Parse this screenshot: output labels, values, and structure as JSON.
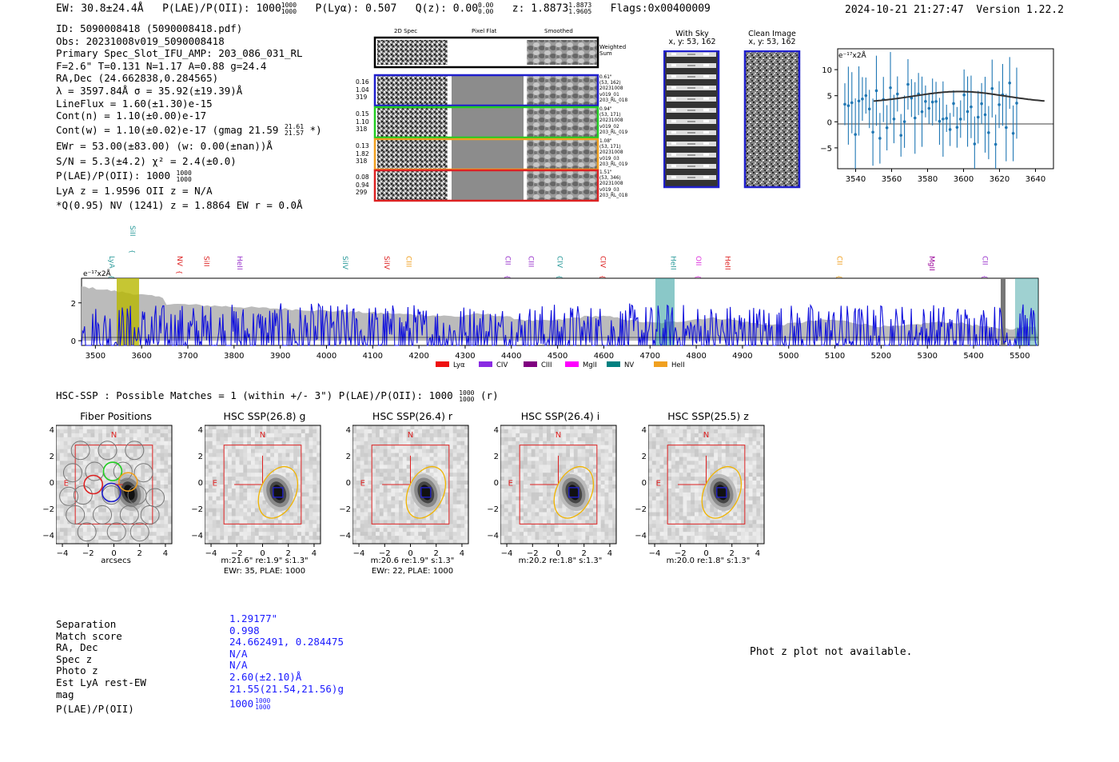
{
  "header": {
    "ew": "EW: 30.8±24.4Å",
    "plae_label": "P(LAE)/P(OII): 1000",
    "plae_hi": "1000",
    "plae_lo": "1000",
    "plya": "P(Lyα): 0.507",
    "qz_label": "Q(z): 0.00",
    "qz_hi": "0.00",
    "qz_lo": "0.00",
    "z_label": "z: 1.8873",
    "z_hi": "1.8873",
    "z_lo": "1.9605",
    "flags": "Flags:0x00400009",
    "timestamp": "2024-10-21 21:27:47",
    "version": "Version 1.22.2"
  },
  "info": {
    "id": "ID: 5090008418 (5090008418.pdf)",
    "obs": "Obs: 20231008v019_5090008418",
    "primary": "Primary Spec_Slot_IFU_AMP: 203_086_031_RL",
    "params": "F=2.6\"  T=0.131  N=1.17  A=0.88  g=24.4",
    "radec": "RA,Dec (24.662838,0.284565)",
    "lambda": "λ = 3597.84Å  σ = 35.92(±19.39)Å",
    "lineflux": "LineFlux = 1.60(±1.30)e-15",
    "contn": "Cont(n) = 1.10(±0.00)e-17",
    "contw_a": "Cont(w) = 1.10(±0.02)e-17 (gmag 21.59",
    "contw_hi": "21.61",
    "contw_lo": "21.57",
    "contw_b": "*)",
    "ewr": "EWr = 53.00(±83.00) (w: 0.00(±nan))Å",
    "sn": "S/N = 5.3(±4.2)  χ² = 2.4(±0.0)",
    "plae_a": "P(LAE)/P(OII): 1000",
    "plae_hi": "1000",
    "plae_lo": "1000",
    "lya": "LyA z = 1.9596  OII z = N/A",
    "q": "*Q(0.95) NV  (1241) z = 1.8864  EW r = 0.0Å"
  },
  "fibers": {
    "col_headers": [
      "2D Spec",
      "Pixel Flat",
      "Smoothed"
    ],
    "weighted_sum": [
      "Weighted",
      "Sum"
    ],
    "rows": [
      {
        "color": "#1f1fcc",
        "stats": [
          "0.16",
          "1.04",
          "319"
        ],
        "info": [
          "0.61\"",
          "(53, 162)",
          "20231008",
          "v019_01",
          "203_RL_018"
        ]
      },
      {
        "color": "#22cc22",
        "stats": [
          "0.15",
          "1.10",
          "318"
        ],
        "info": [
          "0.94\"",
          "(53, 171)",
          "20231008",
          "v019_02",
          "203_RL_019"
        ]
      },
      {
        "color": "#f0a020",
        "stats": [
          "0.13",
          "1.82",
          "318"
        ],
        "info": [
          "1.08\"",
          "(53, 171)",
          "20231008",
          "v019_03",
          "203_RL_019"
        ]
      },
      {
        "color": "#dd2222",
        "stats": [
          "0.08",
          "0.94",
          "299"
        ],
        "info": [
          "1.51\"",
          "(53, 346)",
          "20231008",
          "v019_03",
          "203_RL_018"
        ]
      }
    ]
  },
  "sky": {
    "with_sky_title": "With Sky",
    "with_sky_xy": "x, y: 53, 162",
    "clean_title": "Clean Image",
    "clean_xy": "x, y: 53, 162"
  },
  "zoom_plot": {
    "scale_label": "e⁻¹⁷x2Å",
    "x_ticks": [
      "3540",
      "3560",
      "3580",
      "3600",
      "3620",
      "3640"
    ],
    "y_ticks": [
      "10",
      "5",
      "0",
      "−5"
    ]
  },
  "spectrum": {
    "scale_label": "e⁻¹⁷x2Å",
    "x_ticks": [
      "3500",
      "3600",
      "3700",
      "3800",
      "3900",
      "4000",
      "4100",
      "4200",
      "4300",
      "4400",
      "4500",
      "4600",
      "4700",
      "4800",
      "4900",
      "5000",
      "5100",
      "5200",
      "5300",
      "5400",
      "5500"
    ],
    "y_ticks": [
      "2",
      "0"
    ],
    "lines": [
      {
        "label": "LyA",
        "color": "#2a9a9a",
        "wave": 3525
      },
      {
        "label": "SiII",
        "color": "#2a9a9a",
        "wave": 3570
      },
      {
        "label": "NV",
        "color": "#dd2222",
        "wave": 3672
      },
      {
        "label": "SiII",
        "color": "#dd2222",
        "wave": 3730
      },
      {
        "label": "HeII",
        "color": "#9933cc",
        "wave": 3802
      },
      {
        "label": "SiIV",
        "color": "#2a9a9a",
        "wave": 4030
      },
      {
        "label": "SiIV",
        "color": "#dd2222",
        "wave": 4120
      },
      {
        "label": "CIII",
        "color": "#f0a020",
        "wave": 4168
      },
      {
        "label": "CII",
        "color": "#9933cc",
        "wave": 4382
      },
      {
        "label": "CIII",
        "color": "#9933cc",
        "wave": 4432
      },
      {
        "label": "CIV",
        "color": "#2a9a9a",
        "wave": 4495
      },
      {
        "label": "CIV",
        "color": "#dd2222",
        "wave": 4588
      },
      {
        "label": "HeII",
        "color": "#2a9a9a",
        "wave": 4740
      },
      {
        "label": "OII",
        "color": "#dd33dd",
        "wave": 4795
      },
      {
        "label": "HeII",
        "color": "#dd2222",
        "wave": 4858
      },
      {
        "label": "CII",
        "color": "#f0a020",
        "wave": 5100
      },
      {
        "label": "MgII",
        "color": "#990099",
        "wave": 5300
      },
      {
        "label": "CII",
        "color": "#9933cc",
        "wave": 5415
      }
    ],
    "legend": [
      {
        "label": "Lyα",
        "color": "#ee1111"
      },
      {
        "label": "CIV",
        "color": "#8a2be2"
      },
      {
        "label": "CIII",
        "color": "#800080"
      },
      {
        "label": "MgII",
        "color": "#ff00ff"
      },
      {
        "label": "NV",
        "color": "#008080"
      },
      {
        "label": "HeII",
        "color": "#f0a020"
      }
    ]
  },
  "hsc": {
    "summary_a": "HSC-SSP : Possible Matches = 1 (within +/- 3\")  P(LAE)/P(OII): 1000",
    "summary_hi": "1000",
    "summary_lo": "1000",
    "summary_b": "(r)",
    "panels": [
      {
        "title": "Fiber Positions",
        "caption1": "arcsecs",
        "caption2": ""
      },
      {
        "title": "HSC SSP(26.8) g",
        "caption1": "m:21.6\"  re:1.9\"  s:1.3\"",
        "caption2": "EWr: 35, PLAE: 1000"
      },
      {
        "title": "HSC SSP(26.4) r",
        "caption1": "m:20.6  re:1.9\"  s:1.3\"",
        "caption2": "EWr: 22, PLAE: 1000"
      },
      {
        "title": "HSC SSP(26.4) i",
        "caption1": "m:20.2  re:1.8\"  s:1.3\"",
        "caption2": ""
      },
      {
        "title": "HSC SSP(25.5) z",
        "caption1": "m:20.0  re:1.8\"  s:1.3\"",
        "caption2": ""
      }
    ],
    "x_ticks": [
      "−4",
      "−2",
      "0",
      "2",
      "4"
    ],
    "y_ticks": [
      "4",
      "2",
      "0",
      "−2",
      "−4"
    ],
    "compass_n": "N",
    "compass_e": "E"
  },
  "match_table": {
    "rows": [
      {
        "label": "Separation",
        "value": "1.29177\""
      },
      {
        "label": "Match score",
        "value": "0.998"
      },
      {
        "label": "RA, Dec",
        "value": "24.662491, 0.284475"
      },
      {
        "label": "Spec z",
        "value": "N/A"
      },
      {
        "label": "Photo z",
        "value": "N/A"
      },
      {
        "label": "Est LyA rest-EW",
        "value": "2.60(±2.10)Å"
      },
      {
        "label": "mag",
        "value": "21.55(21.54,21.56)g"
      }
    ],
    "plae_label": "P(LAE)/P(OII)",
    "plae_value": "1000",
    "plae_hi": "1000",
    "plae_lo": "1000"
  },
  "photz_note": "Phot z plot not available."
}
